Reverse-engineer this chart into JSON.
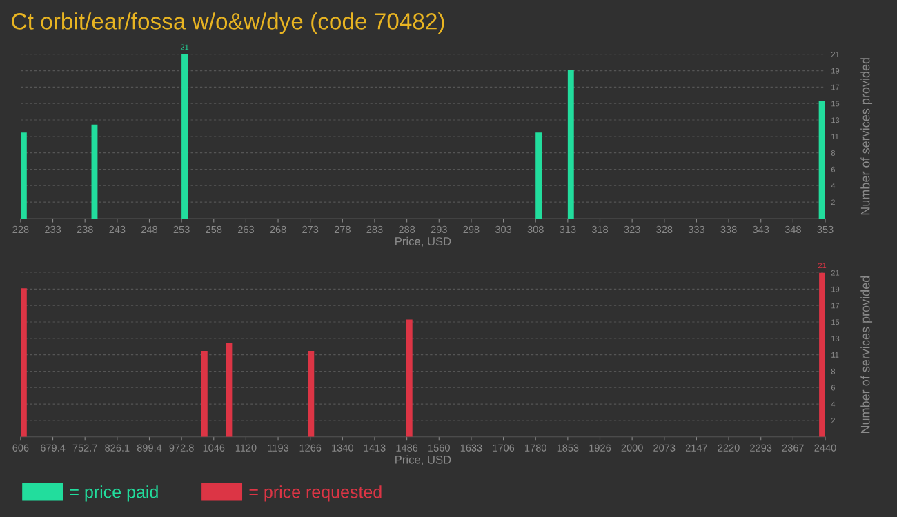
{
  "chart_data": [
    {
      "type": "bar",
      "title": "Ct orbit/ear/fossa w/o&w/dye (code 70482)",
      "xlabel": "Price, USD",
      "ylabel": "Number of services provided",
      "x": [
        228,
        239,
        253,
        308,
        313,
        352
      ],
      "series": [
        {
          "name": "= price paid",
          "color": "#22dd9d",
          "values": [
            11,
            12,
            21,
            11,
            19,
            15
          ],
          "value_labels": [
            null,
            null,
            "21",
            null,
            null,
            null
          ]
        }
      ],
      "xlim": [
        228,
        353
      ],
      "xticks": [
        228,
        233,
        238,
        243,
        248,
        253,
        258,
        263,
        268,
        273,
        278,
        283,
        288,
        293,
        298,
        303,
        308,
        313,
        318,
        323,
        328,
        333,
        338,
        343,
        348,
        353
      ],
      "ylim": [
        0,
        21
      ],
      "yticks": [
        {
          "value": 2.1,
          "label": "2"
        },
        {
          "value": 4.2,
          "label": "4"
        },
        {
          "value": 6.3,
          "label": "6"
        },
        {
          "value": 8.4,
          "label": "8"
        },
        {
          "value": 10.5,
          "label": "11"
        },
        {
          "value": 12.6,
          "label": "13"
        },
        {
          "value": 14.7,
          "label": "15"
        },
        {
          "value": 16.8,
          "label": "17"
        },
        {
          "value": 18.9,
          "label": "19"
        },
        {
          "value": 21,
          "label": "21"
        }
      ],
      "grid": "y",
      "legend": "bottom"
    },
    {
      "type": "bar",
      "xlabel": "Price, USD",
      "ylabel": "Number of services provided",
      "x": [
        606,
        1018,
        1074,
        1261,
        1485,
        2426
      ],
      "series": [
        {
          "name": "= price requested",
          "color": "#dc3545",
          "values": [
            19,
            11,
            12,
            11,
            15,
            21
          ],
          "value_labels": [
            null,
            null,
            null,
            null,
            null,
            "21"
          ]
        }
      ],
      "xlim": [
        606,
        2440
      ],
      "xticks": [
        606,
        {
          "value": 679.36,
          "label": "679.4"
        },
        {
          "value": 752.72,
          "label": "752.7"
        },
        {
          "value": 826.08,
          "label": "826.1"
        },
        {
          "value": 899.44,
          "label": "899.4"
        },
        {
          "value": 972.8,
          "label": "972.8"
        },
        {
          "value": 1046.16,
          "label": "1046"
        },
        {
          "value": 1119.52,
          "label": "1120"
        },
        {
          "value": 1192.88,
          "label": "1193"
        },
        {
          "value": 1266.24,
          "label": "1266"
        },
        {
          "value": 1339.6,
          "label": "1340"
        },
        {
          "value": 1412.96,
          "label": "1413"
        },
        {
          "value": 1486.32,
          "label": "1486"
        },
        {
          "value": 1559.68,
          "label": "1560"
        },
        {
          "value": 1633.04,
          "label": "1633"
        },
        {
          "value": 1706.4,
          "label": "1706"
        },
        {
          "value": 1779.76,
          "label": "1780"
        },
        {
          "value": 1853.12,
          "label": "1853"
        },
        {
          "value": 1926.48,
          "label": "1926"
        },
        {
          "value": 1999.84,
          "label": "2000"
        },
        {
          "value": 2073.2,
          "label": "2073"
        },
        {
          "value": 2146.56,
          "label": "2147"
        },
        {
          "value": 2219.92,
          "label": "2220"
        },
        {
          "value": 2293.28,
          "label": "2293"
        },
        {
          "value": 2366.64,
          "label": "2367"
        },
        2440
      ],
      "ylim": [
        0,
        21
      ],
      "yticks": [
        {
          "value": 2.1,
          "label": "2"
        },
        {
          "value": 4.2,
          "label": "4"
        },
        {
          "value": 6.3,
          "label": "6"
        },
        {
          "value": 8.4,
          "label": "8"
        },
        {
          "value": 10.5,
          "label": "11"
        },
        {
          "value": 12.6,
          "label": "13"
        },
        {
          "value": 14.7,
          "label": "15"
        },
        {
          "value": 16.8,
          "label": "17"
        },
        {
          "value": 18.9,
          "label": "19"
        },
        {
          "value": 21,
          "label": "21"
        }
      ],
      "grid": "y",
      "legend": "bottom"
    }
  ]
}
